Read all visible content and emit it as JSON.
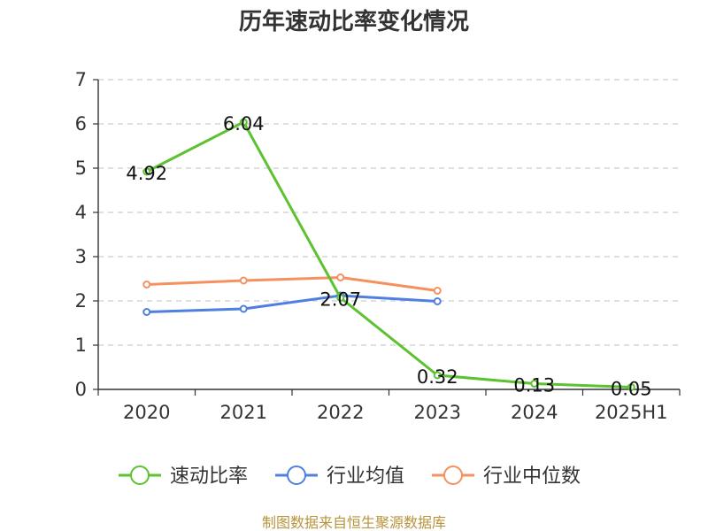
{
  "chart_data": {
    "type": "line",
    "title": "历年速动比率变化情况",
    "xlabel": "",
    "ylabel": "",
    "categories": [
      "2020",
      "2021",
      "2022",
      "2023",
      "2024",
      "2025H1"
    ],
    "ylim": [
      0,
      7
    ],
    "yticks": [
      0,
      1,
      2,
      3,
      4,
      5,
      6,
      7
    ],
    "grid": true,
    "legend_position": "bottom",
    "series": [
      {
        "name": "速动比率",
        "color": "#5cc22f",
        "values": [
          4.92,
          6.04,
          2.07,
          0.32,
          0.13,
          0.05
        ],
        "data_labels": [
          "4.92",
          "6.04",
          "2.07",
          "0.32",
          "0.13",
          "0.05"
        ]
      },
      {
        "name": "行业均值",
        "color": "#4f7fe0",
        "values": [
          1.75,
          1.82,
          2.12,
          1.99,
          null,
          null
        ]
      },
      {
        "name": "行业中位数",
        "color": "#f4915f",
        "values": [
          2.37,
          2.46,
          2.53,
          2.23,
          null,
          null
        ]
      }
    ]
  },
  "footer": {
    "source": "制图数据来自恒生聚源数据库"
  }
}
